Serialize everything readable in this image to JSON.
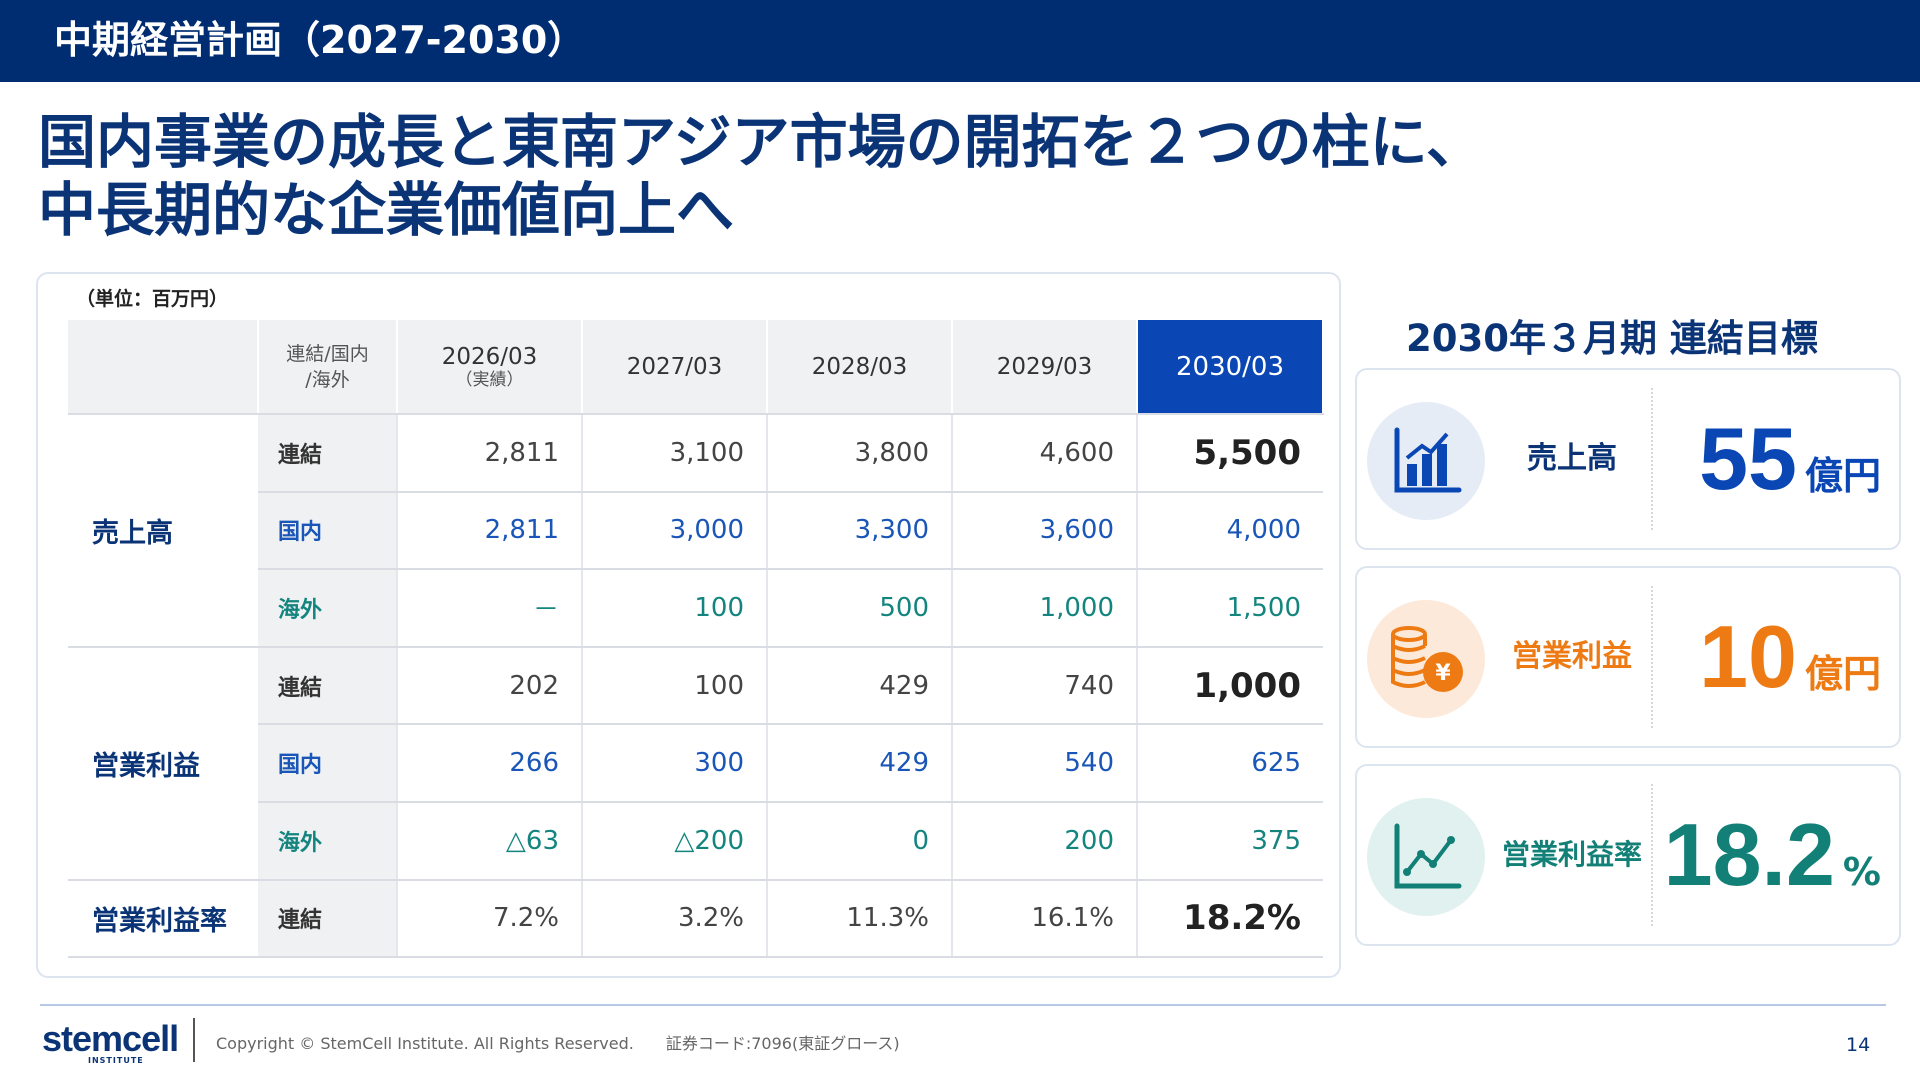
{
  "header": {
    "title": "中期経営計画（2027-2030）"
  },
  "headline": {
    "line1": "国内事業の成長と東南アジア市場の開拓を２つの柱に、",
    "line2": "中長期的な企業価値向上へ"
  },
  "table": {
    "unit": "（単位：百万円）",
    "headers": {
      "segment": "連結/国内\n/海外",
      "col1": "2026/03",
      "col1_sub": "（実績）",
      "col2": "2027/03",
      "col3": "2028/03",
      "col4": "2029/03",
      "col5": "2030/03"
    },
    "sales": {
      "label": "売上高",
      "consolidated": {
        "seg": "連結",
        "values": [
          "2,811",
          "3,100",
          "3,800",
          "4,600",
          "5,500"
        ]
      },
      "domestic": {
        "seg": "国内",
        "values": [
          "2,811",
          "3,000",
          "3,300",
          "3,600",
          "4,000"
        ]
      },
      "overseas": {
        "seg": "海外",
        "values": [
          "－",
          "100",
          "500",
          "1,000",
          "1,500"
        ]
      }
    },
    "operating_profit": {
      "label": "営業利益",
      "consolidated": {
        "seg": "連結",
        "values": [
          "202",
          "100",
          "429",
          "740",
          "1,000"
        ]
      },
      "domestic": {
        "seg": "国内",
        "values": [
          "266",
          "300",
          "429",
          "540",
          "625"
        ]
      },
      "overseas": {
        "seg": "海外",
        "values": [
          "△63",
          "△200",
          "0",
          "200",
          "375"
        ]
      }
    },
    "margin": {
      "label": "営業利益率",
      "consolidated": {
        "seg": "連結",
        "values": [
          "7.2%",
          "3.2%",
          "11.3%",
          "16.1%",
          "18.2%"
        ]
      }
    }
  },
  "targets": {
    "title": "2030年３月期 連結目標",
    "sales": {
      "label": "売上高",
      "value": "55",
      "unit": "億円",
      "icon": "bar-chart-icon",
      "color": "#0a47b4"
    },
    "profit": {
      "label": "営業利益",
      "value": "10",
      "unit": "億円",
      "icon": "coins-yen-icon",
      "color": "#ee7a14"
    },
    "margin": {
      "label": "営業利益率",
      "value": "18.2",
      "unit": "%",
      "icon": "line-chart-icon",
      "color": "#128077"
    }
  },
  "footer": {
    "logo": "stemcell",
    "logo_sub": "INSTITUTE",
    "copyright": "Copyright © StemCell Institute. All Rights Reserved.　　証券コード:7096(東証グロース)",
    "page": "14"
  }
}
